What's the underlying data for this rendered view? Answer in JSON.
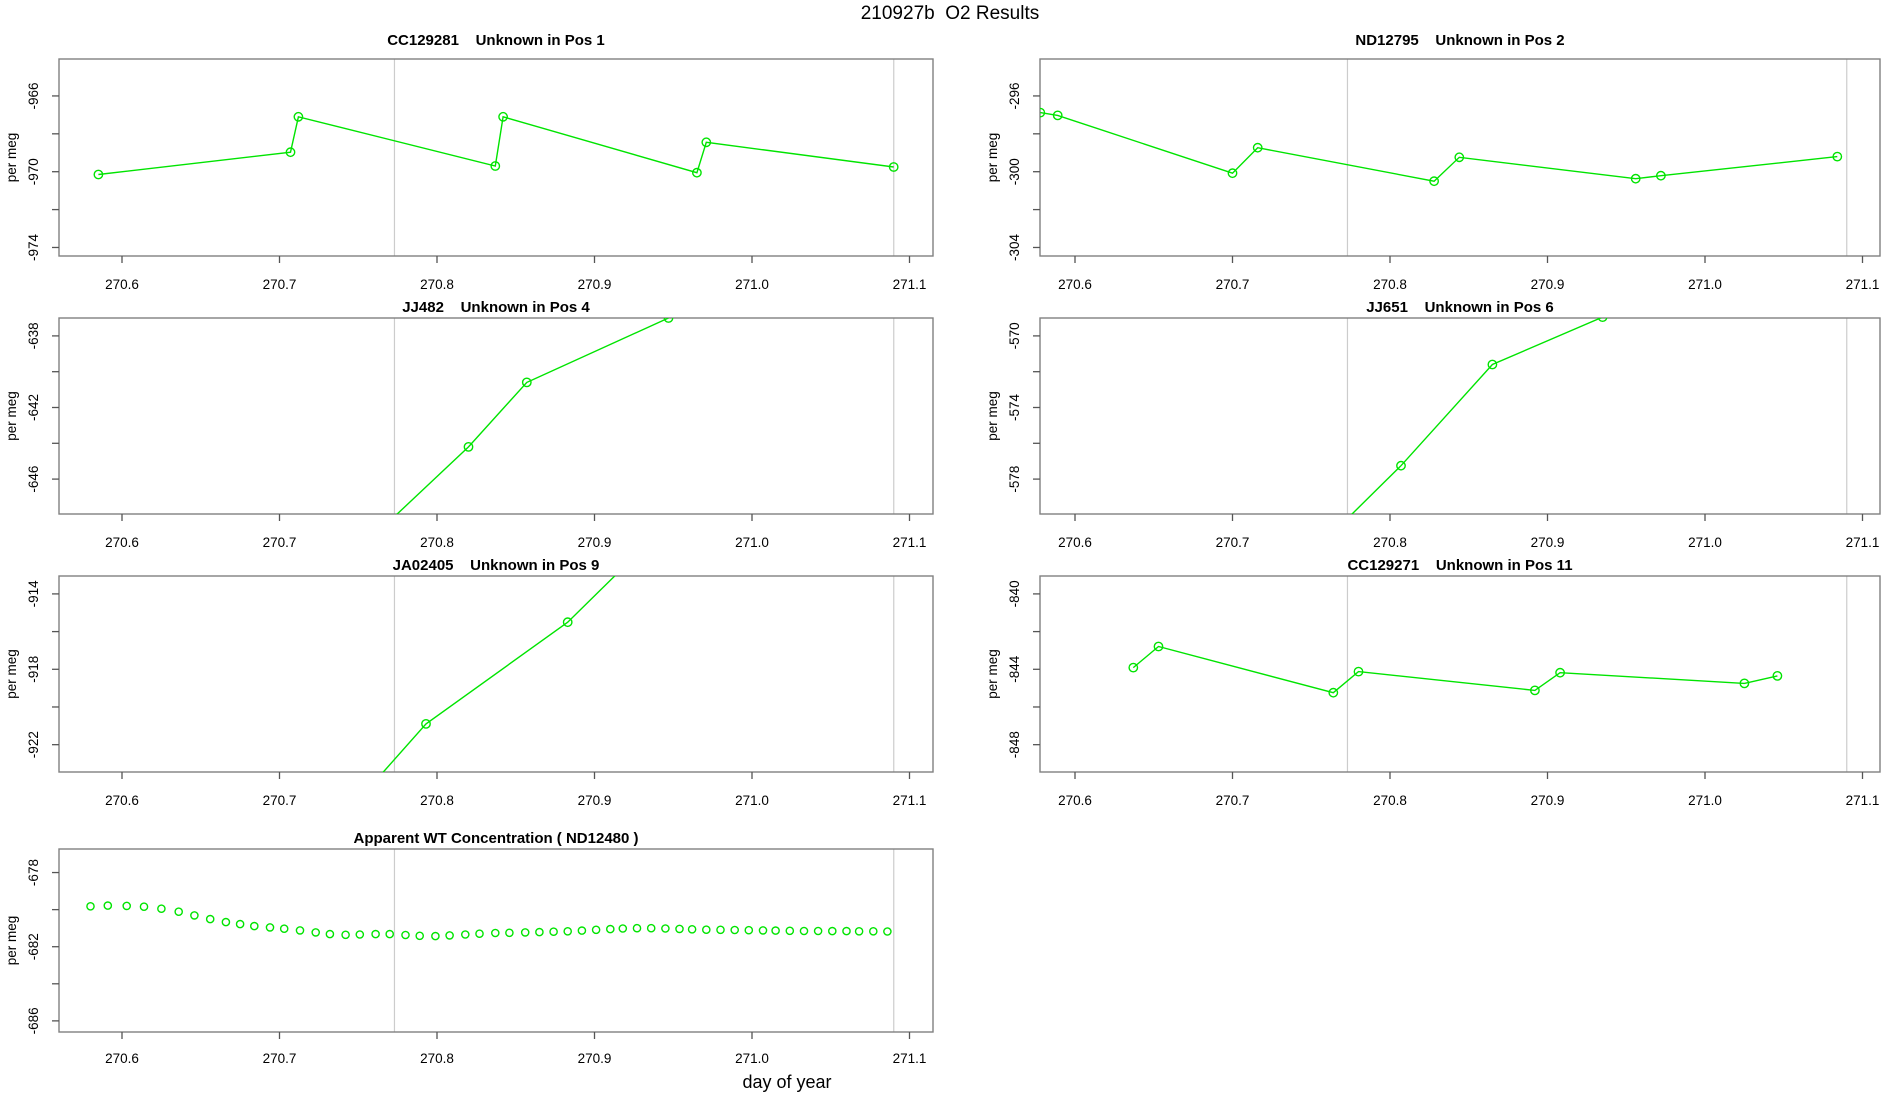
{
  "main_title": "210927b  O2 Results",
  "x_axis_label": "day of year",
  "y_axis_label": "per meg",
  "colors": {
    "series_green": "#00e400",
    "grid_gray": "#cccccc",
    "box_gray": "#808080",
    "tick_gray": "#555555",
    "text_black": "#000000",
    "background": "#ffffff"
  },
  "x_ticks": [
    270.6,
    270.7,
    270.8,
    270.9,
    271.0,
    271.1
  ],
  "x_gridlines": [
    270.773,
    271.09
  ],
  "chart_data": [
    {
      "type": "line",
      "id": "CC129281",
      "title_parts": [
        "CC129281",
        "Unknown in Pos 1"
      ],
      "row": 0,
      "col": 0,
      "ylabel": "per meg",
      "ylim": [
        -974.45,
        -964.05
      ],
      "yticks_all": [
        -974,
        -972,
        -970,
        -968,
        -966
      ],
      "yticks_labeled": [
        -974,
        -970,
        -966
      ],
      "marker": "circle-open",
      "draw_line": true,
      "points": [
        [
          270.585,
          -970.15
        ],
        [
          270.707,
          -968.97
        ],
        [
          270.712,
          -967.1
        ],
        [
          270.837,
          -969.7
        ],
        [
          270.842,
          -967.1
        ],
        [
          270.965,
          -970.05
        ],
        [
          270.971,
          -968.45
        ],
        [
          271.09,
          -969.75
        ]
      ]
    },
    {
      "type": "line",
      "id": "ND12795",
      "title_parts": [
        "ND12795",
        "Unknown in Pos 2"
      ],
      "row": 0,
      "col": 1,
      "ylabel": "per meg",
      "ylim": [
        -304.45,
        -294.05
      ],
      "yticks_all": [
        -304,
        -302,
        -300,
        -298,
        -296
      ],
      "yticks_labeled": [
        -304,
        -300,
        -296
      ],
      "marker": "circle-open",
      "draw_line": true,
      "points": [
        [
          270.578,
          -296.88
        ],
        [
          270.589,
          -297.03
        ],
        [
          270.7,
          -300.08
        ],
        [
          270.716,
          -298.73
        ],
        [
          270.828,
          -300.5
        ],
        [
          270.844,
          -299.24
        ],
        [
          270.956,
          -300.37
        ],
        [
          270.972,
          -300.21
        ],
        [
          271.084,
          -299.2
        ]
      ]
    },
    {
      "type": "line",
      "id": "JJ482",
      "title_parts": [
        "JJ482",
        "Unknown in Pos 4"
      ],
      "row": 1,
      "col": 0,
      "ylabel": "per meg",
      "ylim": [
        -647.95,
        -637.0
      ],
      "yticks_all": [
        -646,
        -644,
        -642,
        -640,
        -638
      ],
      "yticks_labeled": [
        -646,
        -642,
        -638
      ],
      "marker": "circle-open",
      "draw_line": true,
      "points": [
        [
          270.75,
          -650.0
        ],
        [
          270.82,
          -644.2
        ],
        [
          270.857,
          -640.6
        ],
        [
          270.947,
          -637.0
        ]
      ]
    },
    {
      "type": "line",
      "id": "JJ651",
      "title_parts": [
        "JJ651",
        "Unknown in Pos 6"
      ],
      "row": 1,
      "col": 1,
      "ylabel": "per meg",
      "ylim": [
        -579.95,
        -569.0
      ],
      "yticks_all": [
        -578,
        -576,
        -574,
        -572,
        -570
      ],
      "yticks_labeled": [
        -578,
        -574,
        -570
      ],
      "marker": "circle-open",
      "draw_line": true,
      "points": [
        [
          270.75,
          -582.2
        ],
        [
          270.807,
          -577.25
        ],
        [
          270.865,
          -571.6
        ],
        [
          270.935,
          -568.95
        ]
      ]
    },
    {
      "type": "line",
      "id": "JA02405",
      "title_parts": [
        "JA02405",
        "Unknown in Pos 9"
      ],
      "row": 2,
      "col": 0,
      "ylabel": "per meg",
      "ylim": [
        -923.45,
        -913.05
      ],
      "yticks_all": [
        -922,
        -920,
        -918,
        -916,
        -914
      ],
      "yticks_labeled": [
        -922,
        -918,
        -914
      ],
      "marker": "circle-open",
      "draw_line": true,
      "points": [
        [
          270.75,
          -924.95
        ],
        [
          270.793,
          -920.9
        ],
        [
          270.883,
          -915.5
        ],
        [
          270.95,
          -910.0
        ]
      ]
    },
    {
      "type": "line",
      "id": "CC129271",
      "title_parts": [
        "CC129271",
        "Unknown in Pos 11"
      ],
      "row": 2,
      "col": 1,
      "ylabel": "per meg",
      "ylim": [
        -849.45,
        -839.05
      ],
      "yticks_all": [
        -848,
        -846,
        -844,
        -842,
        -840
      ],
      "yticks_labeled": [
        -848,
        -844,
        -840
      ],
      "marker": "circle-open",
      "draw_line": true,
      "points": [
        [
          270.637,
          -843.91
        ],
        [
          270.653,
          -842.79
        ],
        [
          270.764,
          -845.24
        ],
        [
          270.78,
          -844.12
        ],
        [
          270.892,
          -845.12
        ],
        [
          270.908,
          -844.18
        ],
        [
          271.025,
          -844.75
        ],
        [
          271.046,
          -844.35
        ]
      ]
    },
    {
      "type": "scatter",
      "id": "ND12480",
      "title_parts": [
        "Apparent WT Concentration ( ND12480 )"
      ],
      "row": 3,
      "col": 0,
      "ylabel": "per meg",
      "ylim": [
        -686.6,
        -676.73
      ],
      "yticks_all": [
        -686,
        -684,
        -682,
        -680,
        -678
      ],
      "yticks_labeled": [
        -686,
        -682,
        -678
      ],
      "marker": "circle-open",
      "draw_line": false,
      "points": [
        [
          270.58,
          -679.82
        ],
        [
          270.591,
          -679.78
        ],
        [
          270.603,
          -679.8
        ],
        [
          270.614,
          -679.84
        ],
        [
          270.625,
          -679.95
        ],
        [
          270.636,
          -680.11
        ],
        [
          270.646,
          -680.31
        ],
        [
          270.656,
          -680.51
        ],
        [
          270.666,
          -680.67
        ],
        [
          270.675,
          -680.78
        ],
        [
          270.684,
          -680.89
        ],
        [
          270.694,
          -680.96
        ],
        [
          270.703,
          -681.03
        ],
        [
          270.713,
          -681.12
        ],
        [
          270.723,
          -681.23
        ],
        [
          270.732,
          -681.32
        ],
        [
          270.742,
          -681.36
        ],
        [
          270.751,
          -681.34
        ],
        [
          270.761,
          -681.32
        ],
        [
          270.77,
          -681.32
        ],
        [
          270.78,
          -681.37
        ],
        [
          270.789,
          -681.41
        ],
        [
          270.799,
          -681.43
        ],
        [
          270.808,
          -681.39
        ],
        [
          270.818,
          -681.34
        ],
        [
          270.827,
          -681.3
        ],
        [
          270.837,
          -681.26
        ],
        [
          270.846,
          -681.25
        ],
        [
          270.856,
          -681.23
        ],
        [
          270.865,
          -681.21
        ],
        [
          270.874,
          -681.19
        ],
        [
          270.883,
          -681.17
        ],
        [
          270.892,
          -681.13
        ],
        [
          270.901,
          -681.09
        ],
        [
          270.91,
          -681.05
        ],
        [
          270.918,
          -681.02
        ],
        [
          270.927,
          -681.0
        ],
        [
          270.936,
          -681.0
        ],
        [
          270.945,
          -681.02
        ],
        [
          270.954,
          -681.04
        ],
        [
          270.962,
          -681.06
        ],
        [
          270.971,
          -681.08
        ],
        [
          270.98,
          -681.09
        ],
        [
          270.989,
          -681.1
        ],
        [
          270.998,
          -681.11
        ],
        [
          271.007,
          -681.12
        ],
        [
          271.015,
          -681.13
        ],
        [
          271.024,
          -681.14
        ],
        [
          271.033,
          -681.15
        ],
        [
          271.042,
          -681.15
        ],
        [
          271.051,
          -681.16
        ],
        [
          271.06,
          -681.16
        ],
        [
          271.068,
          -681.17
        ],
        [
          271.077,
          -681.17
        ],
        [
          271.086,
          -681.18
        ]
      ]
    }
  ]
}
